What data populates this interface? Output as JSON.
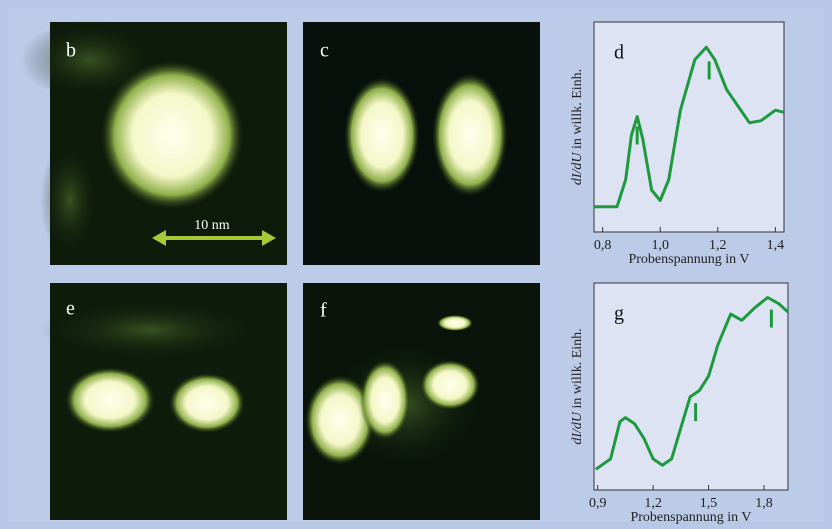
{
  "panels": {
    "b": "b",
    "c": "c",
    "e": "e",
    "f": "f",
    "scale": "10 nm"
  },
  "chart_data": [
    {
      "type": "line",
      "label": "d",
      "ylabel_italic": "dI/dU",
      "ylabel_rest": " in willk. Einh.",
      "xlabel": "Probenspannung in V",
      "x": [
        0.77,
        0.85,
        0.88,
        0.9,
        0.92,
        0.94,
        0.97,
        1.0,
        1.03,
        1.07,
        1.12,
        1.16,
        1.19,
        1.23,
        1.27,
        1.31,
        1.35,
        1.4,
        1.43
      ],
      "values": [
        12,
        12,
        25,
        46,
        55,
        44,
        20,
        15,
        25,
        58,
        82,
        88,
        82,
        68,
        60,
        52,
        53,
        58,
        57
      ],
      "color": "#1e9a3e",
      "markers": [
        0.92,
        1.17
      ],
      "xlim": [
        0.77,
        1.43
      ],
      "ylim": [
        0,
        100
      ],
      "xticks": [
        {
          "value": 0.8,
          "label": "0,8"
        },
        {
          "value": 1.0,
          "label": "1,0"
        },
        {
          "value": 1.2,
          "label": "1,2"
        },
        {
          "value": 1.4,
          "label": "1,4"
        }
      ]
    },
    {
      "type": "line",
      "label": "g",
      "ylabel_italic": "dI/dU",
      "ylabel_rest": " in willk. Einh.",
      "xlabel": "Probenspannung in V",
      "x": [
        0.89,
        0.97,
        1.02,
        1.05,
        1.1,
        1.15,
        1.2,
        1.25,
        1.3,
        1.35,
        1.4,
        1.45,
        1.5,
        1.55,
        1.62,
        1.68,
        1.75,
        1.82,
        1.88,
        1.93
      ],
      "values": [
        10,
        15,
        33,
        35,
        32,
        25,
        15,
        12,
        15,
        30,
        45,
        48,
        55,
        70,
        85,
        82,
        88,
        93,
        90,
        86
      ],
      "color": "#1e9a3e",
      "markers": [
        1.43,
        1.84
      ],
      "xlim": [
        0.88,
        1.93
      ],
      "ylim": [
        0,
        100
      ],
      "xticks": [
        {
          "value": 0.9,
          "label": "0,9"
        },
        {
          "value": 1.2,
          "label": "1,2"
        },
        {
          "value": 1.5,
          "label": "1,5"
        },
        {
          "value": 1.8,
          "label": "1,8"
        }
      ]
    }
  ]
}
